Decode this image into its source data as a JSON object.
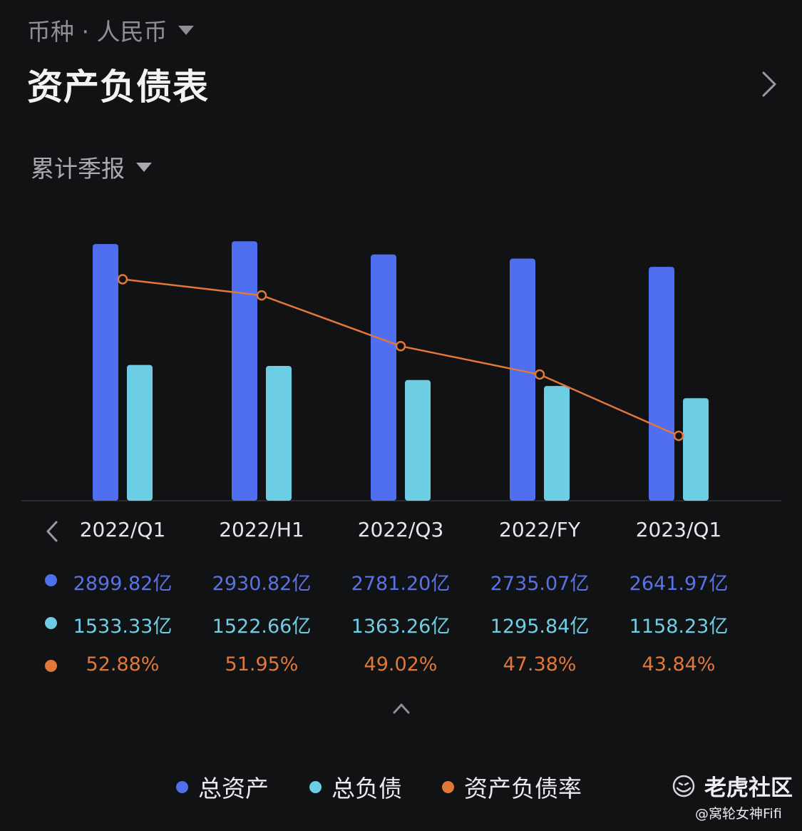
{
  "header": {
    "currency_label": "币种 · 人民币",
    "title": "资产负债表",
    "period_label": "累计季报"
  },
  "colors": {
    "background": "#111214",
    "total_assets": "#4f6ff0",
    "total_liabilities": "#6ccde4",
    "debt_ratio": "#e2773a",
    "assets_text": "#5b72e6",
    "liabilities_text": "#6fcee6",
    "ratio_text": "#e2773a"
  },
  "icons": {
    "currency_dropdown": "caret-down-icon",
    "detail": "chevron-right-icon",
    "period_dropdown": "caret-down-icon",
    "prev": "chevron-left-icon",
    "collapse": "chevron-up-icon",
    "brand": "tiger-logo-icon"
  },
  "chart_data": {
    "type": "bar",
    "categories": [
      "2022/Q1",
      "2022/H1",
      "2022/Q3",
      "2022/FY",
      "2023/Q1"
    ],
    "series": [
      {
        "name": "总资产",
        "type": "bar",
        "values": [
          2899.82,
          2930.82,
          2781.2,
          2735.07,
          2641.97
        ],
        "labels": [
          "2899.82亿",
          "2930.82亿",
          "2781.20亿",
          "2735.07亿",
          "2641.97亿"
        ]
      },
      {
        "name": "总负债",
        "type": "bar",
        "values": [
          1533.33,
          1522.66,
          1363.26,
          1295.84,
          1158.23
        ],
        "labels": [
          "1533.33亿",
          "1522.66亿",
          "1363.26亿",
          "1295.84亿",
          "1158.23亿"
        ]
      },
      {
        "name": "资产负债率",
        "type": "line",
        "values": [
          52.88,
          51.95,
          49.02,
          47.38,
          43.84
        ],
        "labels": [
          "52.88%",
          "51.95%",
          "49.02%",
          "47.38%",
          "43.84%"
        ]
      }
    ],
    "bar_axis_range": [
      0,
      3400
    ],
    "line_axis_range": [
      41,
      55
    ],
    "grid": false,
    "legend_position": "bottom"
  },
  "legend": {
    "items": [
      "总资产",
      "总负债",
      "资产负债率"
    ]
  },
  "footer": {
    "brand": "老虎社区",
    "watermark": "@窝轮女神Fifi"
  }
}
